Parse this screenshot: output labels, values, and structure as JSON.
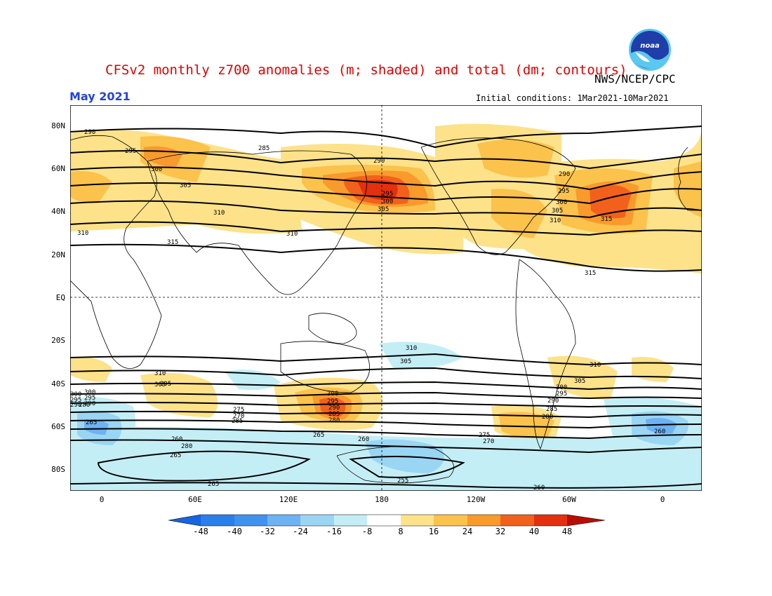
{
  "header": {
    "title": "CFSv2 monthly z700 anomalies (m; shaded) and total (dm; contours)",
    "agency": "NWS/NCEP/CPC",
    "valid_month": "May 2021",
    "initial_conditions": "Initial conditions: 1Mar2021-10Mar2021",
    "logo_text": "noaa"
  },
  "map": {
    "lat_labels": [
      "80N",
      "60N",
      "40N",
      "20N",
      "EQ",
      "20S",
      "40S",
      "60S",
      "80S"
    ],
    "lon_labels": [
      "0",
      "60E",
      "120E",
      "180",
      "120W",
      "60W",
      "0"
    ],
    "contour_labels": [
      "290",
      "285",
      "295",
      "300",
      "305",
      "310",
      "315",
      "290",
      "295",
      "300",
      "305",
      "310",
      "290",
      "295",
      "300",
      "305",
      "310",
      "315",
      "315",
      "310",
      "305",
      "310",
      "310",
      "305",
      "300",
      "295",
      "290",
      "285",
      "280",
      "275",
      "270",
      "265",
      "260",
      "280",
      "265",
      "265",
      "260",
      "255",
      "265",
      "275",
      "270",
      "300",
      "295",
      "290",
      "285",
      "280",
      "260",
      "260",
      "305",
      "300",
      "295",
      "290",
      "285",
      "280",
      "310",
      "305",
      "300",
      "295",
      "290"
    ]
  },
  "colorbar": {
    "labels": [
      "-48",
      "-40",
      "-32",
      "-24",
      "-16",
      "-8",
      "8",
      "16",
      "24",
      "32",
      "40",
      "48"
    ],
    "colors": [
      "#1565e0",
      "#2a7fea",
      "#3f93ee",
      "#6db2f2",
      "#9ad5f4",
      "#c4eef5",
      "#ffffff",
      "#fde28a",
      "#fbc24c",
      "#f89a2c",
      "#f2611b",
      "#e3300e",
      "#b80d05"
    ]
  },
  "colors": {
    "title": "#e00000",
    "month": "#2244dd"
  }
}
